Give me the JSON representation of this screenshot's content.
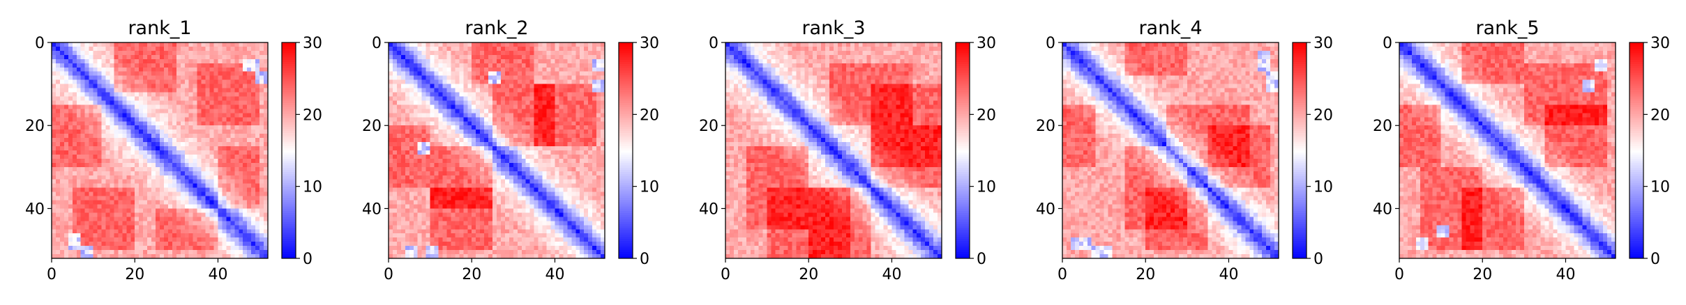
{
  "chart_data": [
    {
      "type": "heatmap",
      "title": "rank_1",
      "n": 52,
      "xticks": [
        "0",
        "20",
        "40"
      ],
      "yticks": [
        "0",
        "20",
        "40"
      ],
      "xlim": [
        0,
        52
      ],
      "ylim": [
        52,
        0
      ],
      "colorbar": {
        "min": 0,
        "max": 30,
        "ticks": [
          "0",
          "10",
          "20",
          "30"
        ]
      },
      "colormap": [
        "#0000ff",
        "#ffffff",
        "#ff0000"
      ],
      "seed": 11,
      "diagonal_band": 6,
      "hot_regions": [
        [
          5,
          20,
          35,
          50
        ],
        [
          25,
          40,
          40,
          50
        ],
        [
          15,
          30,
          0,
          12
        ]
      ],
      "cool_spots": [
        [
          47,
          5
        ],
        [
          50,
          8
        ],
        [
          5,
          48
        ],
        [
          8,
          50
        ]
      ]
    },
    {
      "type": "heatmap",
      "title": "rank_2",
      "n": 52,
      "xticks": [
        "0",
        "20",
        "40"
      ],
      "yticks": [
        "0",
        "20",
        "40"
      ],
      "xlim": [
        0,
        52
      ],
      "ylim": [
        52,
        0
      ],
      "colorbar": {
        "min": 0,
        "max": 30,
        "ticks": [
          "0",
          "10",
          "20",
          "30"
        ]
      },
      "colormap": [
        "#0000ff",
        "#ffffff",
        "#ff0000"
      ],
      "seed": 23,
      "diagonal_band": 6,
      "hot_regions": [
        [
          10,
          25,
          25,
          40
        ],
        [
          35,
          50,
          10,
          25
        ],
        [
          0,
          10,
          20,
          35
        ]
      ],
      "cool_spots": [
        [
          10,
          50
        ],
        [
          25,
          8
        ],
        [
          50,
          5
        ]
      ]
    },
    {
      "type": "heatmap",
      "title": "rank_3",
      "n": 52,
      "xticks": [
        "0",
        "20",
        "40"
      ],
      "yticks": [
        "0",
        "20",
        "40"
      ],
      "xlim": [
        0,
        52
      ],
      "ylim": [
        52,
        0
      ],
      "colorbar": {
        "min": 0,
        "max": 30,
        "ticks": [
          "0",
          "10",
          "20",
          "30"
        ]
      },
      "colormap": [
        "#0000ff",
        "#ffffff",
        "#ff0000"
      ],
      "seed": 37,
      "diagonal_band": 7,
      "hot_regions": [
        [
          35,
          52,
          10,
          30
        ],
        [
          5,
          20,
          25,
          45
        ],
        [
          20,
          35,
          35,
          52
        ]
      ],
      "cool_spots": []
    },
    {
      "type": "heatmap",
      "title": "rank_4",
      "n": 52,
      "xticks": [
        "0",
        "20",
        "40"
      ],
      "yticks": [
        "0",
        "20",
        "40"
      ],
      "xlim": [
        0,
        52
      ],
      "ylim": [
        52,
        0
      ],
      "colorbar": {
        "min": 0,
        "max": 30,
        "ticks": [
          "0",
          "10",
          "20",
          "30"
        ]
      },
      "colormap": [
        "#0000ff",
        "#ffffff",
        "#ff0000"
      ],
      "seed": 41,
      "diagonal_band": 6,
      "hot_regions": [
        [
          15,
          30,
          25,
          45
        ],
        [
          35,
          50,
          20,
          35
        ],
        [
          15,
          30,
          0,
          8
        ]
      ],
      "cool_spots": [
        [
          48,
          3
        ],
        [
          50,
          8
        ],
        [
          5,
          48
        ],
        [
          10,
          50
        ]
      ]
    },
    {
      "type": "heatmap",
      "title": "rank_5",
      "n": 52,
      "xticks": [
        "0",
        "20",
        "40"
      ],
      "yticks": [
        "0",
        "20",
        "40"
      ],
      "xlim": [
        0,
        52
      ],
      "ylim": [
        52,
        0
      ],
      "colorbar": {
        "min": 0,
        "max": 30,
        "ticks": [
          "0",
          "10",
          "20",
          "30"
        ]
      },
      "colormap": [
        "#0000ff",
        "#ffffff",
        "#ff0000"
      ],
      "seed": 53,
      "diagonal_band": 6,
      "hot_regions": [
        [
          5,
          20,
          30,
          50
        ],
        [
          35,
          50,
          15,
          30
        ],
        [
          15,
          30,
          0,
          10
        ]
      ],
      "cool_spots": [
        [
          45,
          10
        ],
        [
          48,
          5
        ],
        [
          10,
          45
        ]
      ]
    }
  ]
}
